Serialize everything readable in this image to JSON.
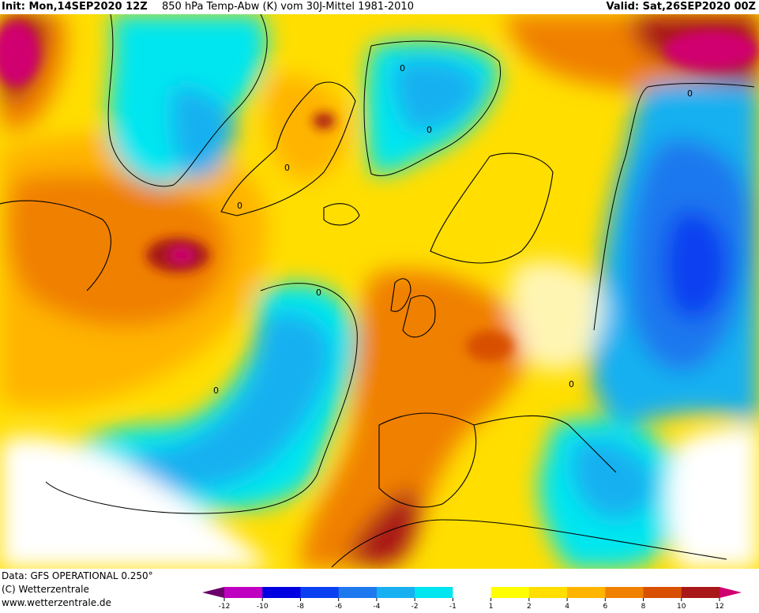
{
  "header": {
    "init": "Init: Mon,14SEP2020 12Z",
    "title": "850 hPa Temp-Abw (K) vom 30J-Mittel 1981-2010",
    "valid": "Valid: Sat,26SEP2020 00Z"
  },
  "footer": {
    "data_source": "Data: GFS OPERATIONAL 0.250°",
    "copyright": "(C) Wetterzentrale",
    "website": "www.wetterzentrale.de"
  },
  "contour_label": "0",
  "legend": {
    "ticks": [
      "-12",
      "-10",
      "-8",
      "-6",
      "-4",
      "-2",
      "-1",
      "1",
      "2",
      "4",
      "6",
      "8",
      "10",
      "12"
    ],
    "colors": {
      "lt_minus12": "#6a006a",
      "m12_m10": "#c000c0",
      "m10_m8": "#0000e0",
      "m8_m6": "#0a40f0",
      "m6_m4": "#1e78ee",
      "m4_m2": "#18b0f0",
      "m2_m1": "#00e6f0",
      "m1_1": "#ffffff",
      "p1_2": "#ffff00",
      "p2_4": "#ffde00",
      "p4_6": "#ffb400",
      "p6_8": "#f08000",
      "p8_10": "#d85000",
      "p10_12": "#a81818",
      "gt_12": "#d00070"
    }
  }
}
